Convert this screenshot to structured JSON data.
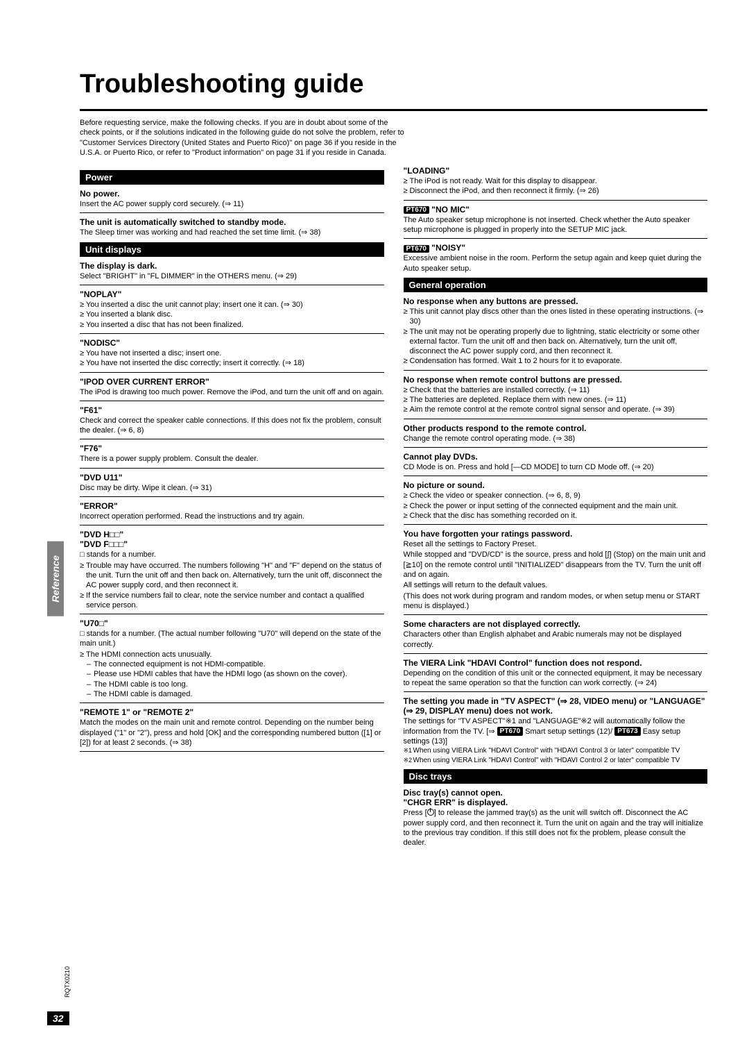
{
  "page_title": "Troubleshooting guide",
  "intro": "Before requesting service, make the following checks. If you are in doubt about some of the check points, or if the solutions indicated in the following guide do not solve the problem, refer to \"Customer Services Directory (United States and Puerto Rico)\" on page 36 if you reside in the U.S.A. or Puerto Rico, or refer to \"Product information\" on page 31 if you reside in Canada.",
  "side_tab": "Reference",
  "page_number": "32",
  "doc_code": "RQTX0210",
  "left": {
    "power": {
      "header": "Power",
      "no_power_t": "No power.",
      "no_power_b": "Insert the AC power supply cord securely. (⇒ 11)",
      "standby_t": "The unit is automatically switched to standby mode.",
      "standby_b": "The Sleep timer was working and had reached the set time limit. (⇒ 38)"
    },
    "unit": {
      "header": "Unit displays",
      "dark_t": "The display is dark.",
      "dark_b": "Select \"BRIGHT\" in \"FL DIMMER\" in the OTHERS menu. (⇒ 29)",
      "noplay_t": "\"NOPLAY\"",
      "noplay_b": [
        "You inserted a disc the unit cannot play; insert one it can. (⇒ 30)",
        "You inserted a blank disc.",
        "You inserted a disc that has not been finalized."
      ],
      "nodisc_t": "\"NODISC\"",
      "nodisc_b": [
        "You have not inserted a disc; insert one.",
        "You have not inserted the disc correctly; insert it correctly. (⇒ 18)"
      ],
      "ipod_t": "\"IPOD OVER CURRENT ERROR\"",
      "ipod_b": "The iPod is drawing too much power. Remove the iPod, and turn the unit off and on again.",
      "f61_t": "\"F61\"",
      "f61_b": "Check and correct the speaker cable connections. If this does not fix the problem, consult the dealer. (⇒ 6, 8)",
      "f76_t": "\"F76\"",
      "f76_b": "There is a power supply problem. Consult the dealer.",
      "u11_t": "\"DVD U11\"",
      "u11_b": "Disc may be dirty. Wipe it clean. (⇒ 31)",
      "err_t": "\"ERROR\"",
      "err_b": "Incorrect operation performed. Read the instructions and try again.",
      "dvdh_t": "\"DVD H□□\"",
      "dvdf_t": "\"DVD F□□□\"",
      "dvdhf_b1": "□ stands for a number.",
      "dvdhf_list": [
        "Trouble may have occurred. The numbers following \"H\" and \"F\" depend on the status of the unit. Turn the unit off and then back on. Alternatively, turn the unit off, disconnect the AC power supply cord, and then reconnect it.",
        "If the service numbers fail to clear, note the service number and contact a qualified service person."
      ],
      "u70_t": "\"U70□\"",
      "u70_b1": "□ stands for a number. (The actual number following \"U70\" will depend on the state of the main unit.)",
      "u70_list": [
        "The HDMI connection acts unusually."
      ],
      "u70_dash": [
        "The connected equipment is not HDMI-compatible.",
        "Please use HDMI cables that have the HDMI logo (as shown on the cover).",
        "The HDMI cable is too long.",
        "The HDMI cable is damaged."
      ],
      "remote_t": "\"REMOTE 1\" or \"REMOTE 2\"",
      "remote_b": "Match the modes on the main unit and remote control. Depending on the number being displayed (\"1\" or \"2\"), press and hold [OK] and the corresponding numbered button ([1] or [2]) for at least 2 seconds. (⇒ 38)"
    }
  },
  "right": {
    "loading_t": "\"LOADING\"",
    "loading_b": [
      "The iPod is not ready. Wait for this display to disappear.",
      "Disconnect the iPod, and then reconnect it firmly. (⇒ 26)"
    ],
    "nomic_badge": "PT670",
    "nomic_t": " \"NO MIC\"",
    "nomic_b": "The Auto speaker setup microphone is not inserted. Check whether the Auto speaker setup microphone is plugged in properly into the SETUP MIC jack.",
    "noisy_badge": "PT670",
    "noisy_t": " \"NOISY\"",
    "noisy_b": "Excessive ambient noise in the room. Perform the setup again and keep quiet during the Auto speaker setup.",
    "gen": {
      "header": "General operation",
      "nrb_t": "No response when any buttons are pressed.",
      "nrb_list": [
        "This unit cannot play discs other than the ones listed in these operating instructions. (⇒ 30)",
        "The unit may not be operating properly due to lightning, static electricity or some other external factor. Turn the unit off and then back on. Alternatively, turn the unit off, disconnect the AC power supply cord, and then reconnect it.",
        "Condensation has formed. Wait 1 to 2 hours for it to evaporate."
      ],
      "nrr_t": "No response when remote control buttons are pressed.",
      "nrr_list": [
        "Check that the batteries are installed correctly. (⇒ 11)",
        "The batteries are depleted. Replace them with new ones. (⇒ 11)",
        "Aim the remote control at the remote control signal sensor and operate. (⇒ 39)"
      ],
      "other_t": "Other products respond to the remote control.",
      "other_b": "Change the remote control operating mode. (⇒ 38)",
      "dvd_t": "Cannot play DVDs.",
      "dvd_b": "CD Mode is on. Press and hold [—CD MODE] to turn CD Mode off. (⇒ 20)",
      "pic_t": "No picture or sound.",
      "pic_list": [
        "Check the video or speaker connection. (⇒ 6, 8, 9)",
        "Check the power or input setting of the connected equipment and the main unit.",
        "Check that the disc has something recorded on it."
      ],
      "pw_t": "You have forgotten your ratings password.",
      "pw_b1": "Reset all the settings to Factory Preset.",
      "pw_b2": "While stopped and \"DVD/CD\" is the source, press and hold [∫] (Stop) on the main unit and [≧10] on the remote control until \"INITIALIZED\" disappears from the TV. Turn the unit off and on again.",
      "pw_b3": "All settings will return to the default values.",
      "pw_b4": "(This does not work during program and random modes, or when setup menu or START menu is displayed.)",
      "char_t": "Some characters are not displayed correctly.",
      "char_b": "Characters other than English alphabet and Arabic numerals may not be displayed correctly.",
      "viera_t": "The VIERA Link \"HDAVI Control\" function does not respond.",
      "viera_b": "Depending on the condition of this unit or the connected equipment, it may be necessary to repeat the same operation so that the function can work correctly. (⇒ 24)",
      "aspect_t": "The setting you made in \"TV ASPECT\" (⇒ 28, VIDEO menu) or \"LANGUAGE\" (⇒ 29, DISPLAY menu) does not work.",
      "aspect_b_pre": "The settings for \"TV ASPECT\"※1 and \"LANGUAGE\"※2 will automatically follow the information from the TV. [⇒ ",
      "aspect_b_badge1": "PT670",
      "aspect_b_mid": " Smart setup settings (12)/ ",
      "aspect_b_badge2": "PT673",
      "aspect_b_post": " Easy setup settings (13)]",
      "fn1": "When using VIERA Link \"HDAVI Control\" with \"HDAVI Control 3 or later\" compatible TV",
      "fn2": "When using VIERA Link \"HDAVI Control\" with \"HDAVI Control 2 or later\" compatible TV"
    },
    "disc": {
      "header": "Disc trays",
      "t1": "Disc tray(s) cannot open.",
      "t2": "\"CHGR ERR\" is displayed.",
      "b_pre": "Press [",
      "b_post": "] to release the jammed tray(s) as the unit will switch off. Disconnect the AC power supply cord, and then reconnect it. Turn the unit on again and the tray will initialize to the previous tray condition. If this still does not fix the problem, please consult the dealer."
    }
  }
}
